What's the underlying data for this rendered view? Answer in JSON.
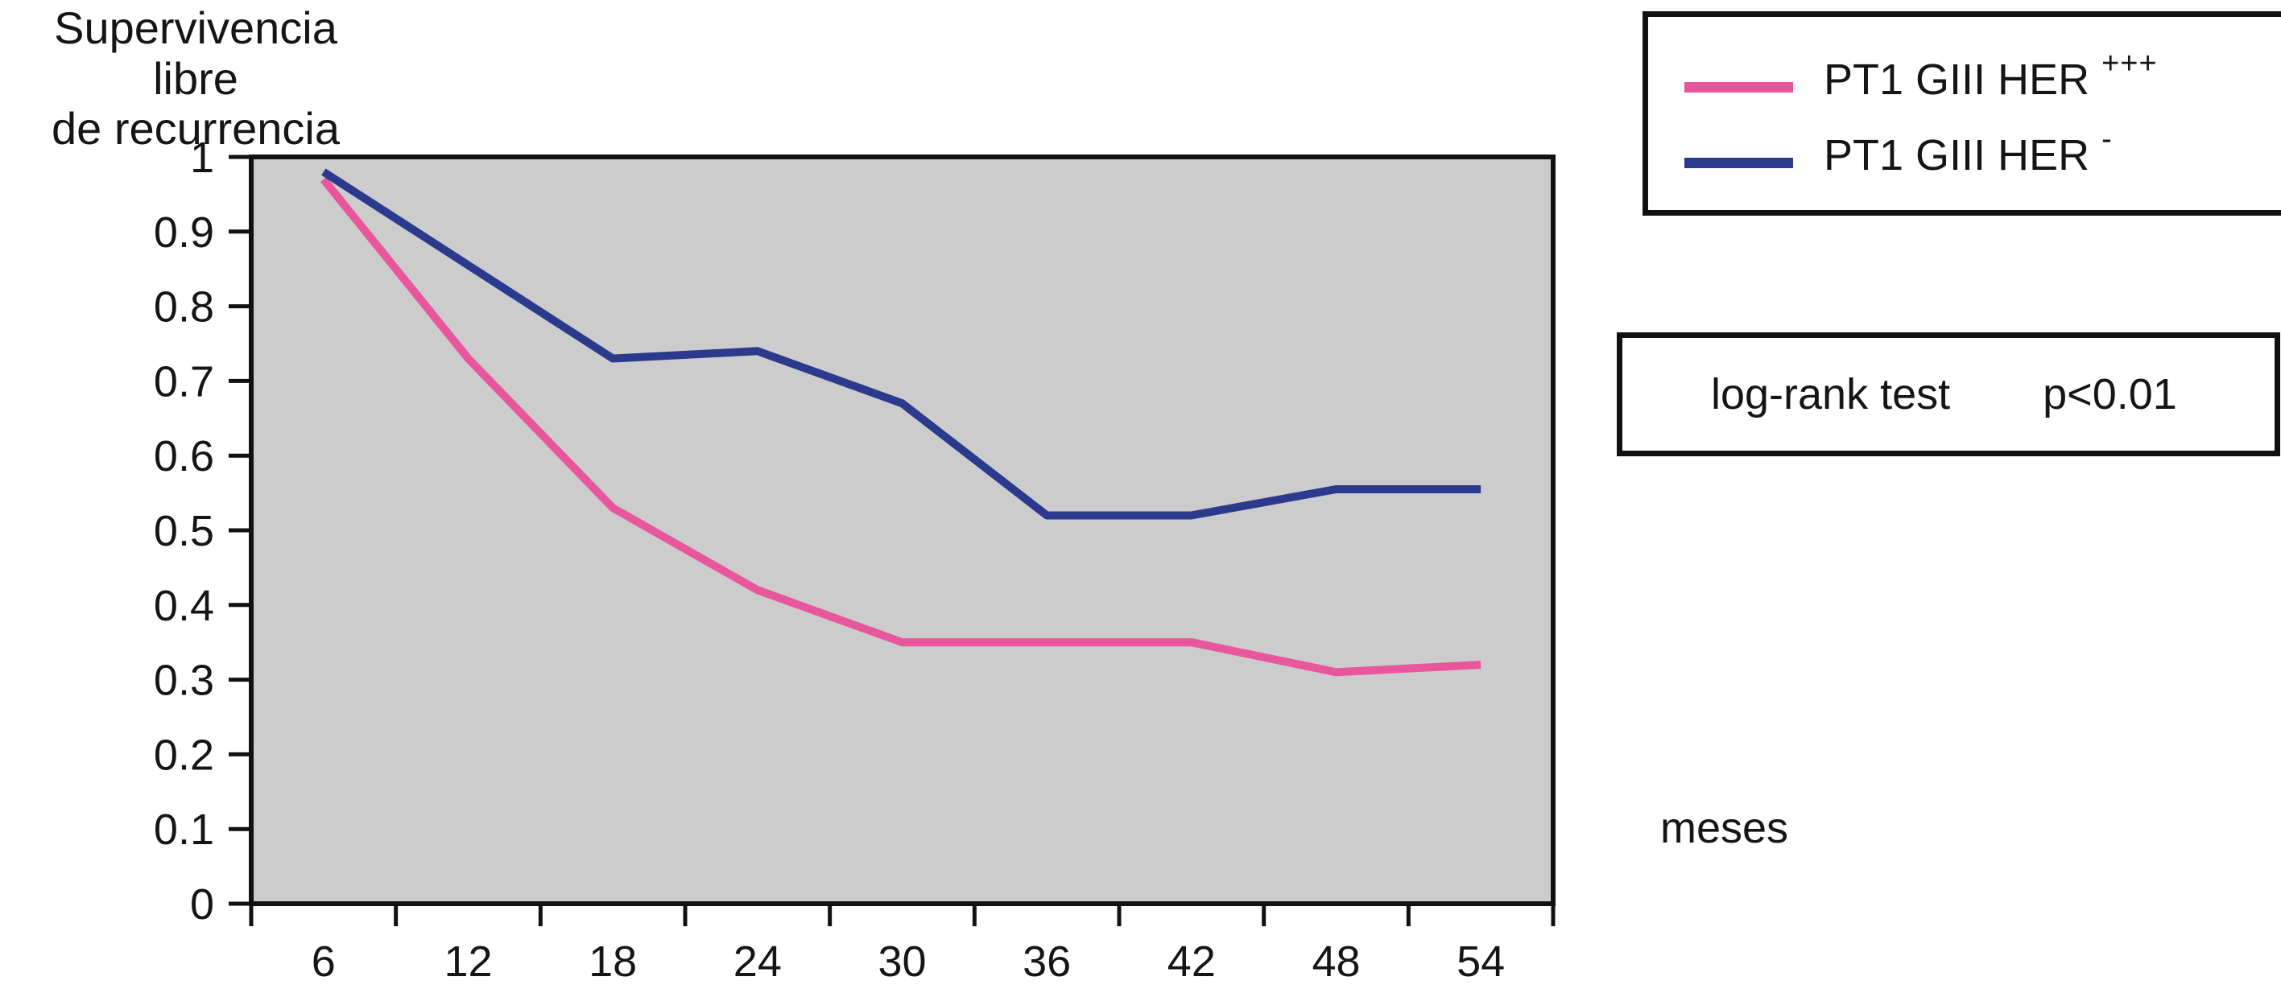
{
  "title": {
    "line1": "Supervivencia libre",
    "line2": "de recurrencia"
  },
  "legend": {
    "items": [
      {
        "label_base": "PT1 GIII HER",
        "label_sup": "+++",
        "color": "#e8579c"
      },
      {
        "label_base": "PT1 GIII HER",
        "label_sup": "-",
        "color": "#2c3a8d"
      }
    ]
  },
  "stats_box": {
    "test_label": "log-rank test",
    "p_value": "p<0.01"
  },
  "x_axis_unit": "meses",
  "chart_data": {
    "type": "line",
    "categories": [
      "6",
      "12",
      "18",
      "24",
      "30",
      "36",
      "42",
      "48",
      "54"
    ],
    "series": [
      {
        "name": "PT1 GIII HER +++",
        "color": "#e8579c",
        "values": [
          0.97,
          0.73,
          0.53,
          0.42,
          0.35,
          0.35,
          0.35,
          0.31,
          0.32
        ]
      },
      {
        "name": "PT1 GIII HER -",
        "color": "#2c3a8d",
        "values": [
          0.98,
          0.855,
          0.73,
          0.74,
          0.67,
          0.52,
          0.52,
          0.555,
          0.555
        ]
      }
    ],
    "title": "Supervivencia libre de recurrencia",
    "xlabel": "meses",
    "ylabel": "Supervivencia libre de recurrencia",
    "ylim": [
      0,
      1
    ],
    "y_ticks": [
      1,
      0.9,
      0.8,
      0.7,
      0.6,
      0.5,
      0.4,
      0.3,
      0.2,
      0.1,
      0
    ],
    "y_tick_labels": [
      "1",
      "0.9",
      "0.8",
      "0.7",
      "0.6",
      "0.5",
      "0.4",
      "0.3",
      "0.2",
      "0.1",
      "0"
    ],
    "grid": false,
    "plot_bg": "#cccccc",
    "axis_color": "#111111",
    "legend_position": "outside-top-right",
    "annotation": "log-rank test p<0.01"
  }
}
